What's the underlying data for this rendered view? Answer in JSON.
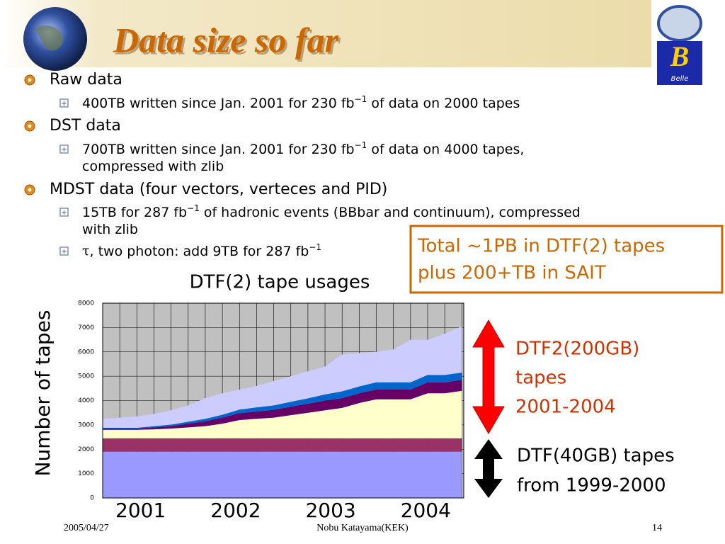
{
  "header": {
    "title": "Data size so far",
    "logo": "Belle"
  },
  "bullets": [
    {
      "text": "Raw data",
      "items": [
        {
          "lines": [
            [
              "400TB written since Jan. 2001 for 230 fb",
              {
                "sup": "−1"
              },
              " of data on 2000 tapes"
            ]
          ]
        }
      ]
    },
    {
      "text": "DST data",
      "items": [
        {
          "lines": [
            [
              "700TB written since Jan. 2001 for 230 fb",
              {
                "sup": "−1"
              },
              " of data on 4000 tapes,"
            ],
            [
              "compressed with zlib"
            ]
          ]
        }
      ]
    },
    {
      "text": "MDST data (four vectors, verteces and PID)",
      "items": [
        {
          "lines": [
            [
              "15TB for 287 fb",
              {
                "sup": "−1"
              },
              " of hadronic events (BBbar and continuum), compressed"
            ],
            [
              "with zlib"
            ]
          ]
        },
        {
          "lines": [
            [
              "τ",
              ", two photon: add 9TB for 287 fb",
              {
                "sup": "−1"
              }
            ]
          ]
        }
      ]
    }
  ],
  "callout": {
    "lines": [
      "Total ~1PB in DTF(2) tapes",
      "plus 200+TB in SAIT"
    ]
  },
  "chart_data": {
    "type": "stacked_area",
    "title": "DTF(2) tape usages",
    "y_label": "Number of tapes",
    "x": [
      2000.6,
      2000.78,
      2000.96,
      2001.14,
      2001.32,
      2001.5,
      2001.68,
      2001.86,
      2002.04,
      2002.22,
      2002.4,
      2002.58,
      2002.76,
      2002.94,
      2003.12,
      2003.3,
      2003.48,
      2003.66,
      2003.84,
      2004.02,
      2004.2,
      2004.38
    ],
    "xlim": [
      2000.6,
      2004.4
    ],
    "xticks": [
      2001,
      2002,
      2003,
      2004
    ],
    "ylim": [
      0,
      8000
    ],
    "yticks": [
      0,
      1000,
      2000,
      3000,
      4000,
      5000,
      6000,
      7000,
      8000
    ],
    "grid": true,
    "series": [
      {
        "color": "#9999ff",
        "values": [
          1900,
          1900,
          1900,
          1900,
          1900,
          1900,
          1900,
          1900,
          1900,
          1900,
          1900,
          1900,
          1900,
          1900,
          1900,
          1900,
          1900,
          1900,
          1900,
          1900,
          1900,
          1900
        ]
      },
      {
        "color": "#993366",
        "values": [
          550,
          550,
          550,
          550,
          550,
          550,
          550,
          550,
          550,
          550,
          550,
          550,
          550,
          550,
          550,
          550,
          550,
          550,
          550,
          550,
          550,
          550
        ]
      },
      {
        "color": "#ffffcc",
        "values": [
          350,
          350,
          350,
          370,
          400,
          450,
          500,
          600,
          750,
          800,
          850,
          950,
          1050,
          1150,
          1250,
          1450,
          1600,
          1600,
          1600,
          1850,
          1850,
          1950
        ]
      },
      {
        "color": "#660066",
        "values": [
          50,
          50,
          50,
          80,
          100,
          150,
          200,
          250,
          280,
          300,
          320,
          350,
          370,
          400,
          400,
          400,
          400,
          400,
          400,
          450,
          450,
          450
        ]
      },
      {
        "color": "#0066cc",
        "values": [
          30,
          30,
          30,
          50,
          60,
          80,
          100,
          120,
          150,
          170,
          180,
          200,
          220,
          250,
          280,
          280,
          300,
          300,
          300,
          300,
          300,
          300
        ]
      },
      {
        "color": "#ccccff",
        "values": [
          370,
          420,
          470,
          500,
          590,
          670,
          850,
          880,
          820,
          880,
          1000,
          1050,
          1110,
          1150,
          1520,
          1370,
          1250,
          1350,
          1750,
          1450,
          1700,
          1900
        ]
      }
    ],
    "annotations": [
      {
        "lines": [
          "DTF2(200GB)",
          "tapes",
          "2001-2004"
        ]
      },
      {
        "lines": [
          "DTF(40GB) tapes",
          "from 1999-2000"
        ]
      }
    ]
  },
  "footer": {
    "date": "2005/04/27",
    "author": "Nobu Katayama(KEK)",
    "page": "14"
  }
}
